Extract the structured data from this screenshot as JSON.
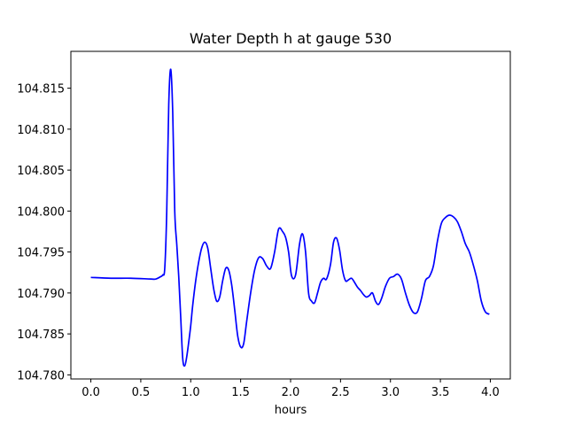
{
  "chart_data": {
    "type": "line",
    "title": "Water Depth h at gauge 530",
    "xlabel": "hours",
    "ylabel": "",
    "xlim": [
      -0.2,
      4.2
    ],
    "ylim": [
      104.7795,
      104.8195
    ],
    "xticks": [
      0.0,
      0.5,
      1.0,
      1.5,
      2.0,
      2.5,
      3.0,
      3.5,
      4.0
    ],
    "xtick_labels": [
      "0.0",
      "0.5",
      "1.0",
      "1.5",
      "2.0",
      "2.5",
      "3.0",
      "3.5",
      "4.0"
    ],
    "yticks": [
      104.78,
      104.785,
      104.79,
      104.795,
      104.8,
      104.805,
      104.81,
      104.815
    ],
    "ytick_labels": [
      "104.780",
      "104.785",
      "104.790",
      "104.795",
      "104.800",
      "104.805",
      "104.810",
      "104.815"
    ],
    "grid": false,
    "series": [
      {
        "color": "#0000ff",
        "x": [
          0.0,
          0.2,
          0.4,
          0.6,
          0.65,
          0.7,
          0.72,
          0.74,
          0.76,
          0.78,
          0.8,
          0.82,
          0.84,
          0.86,
          0.88,
          0.9,
          0.92,
          0.94,
          0.96,
          0.98,
          1.0,
          1.02,
          1.05,
          1.08,
          1.11,
          1.14,
          1.17,
          1.2,
          1.23,
          1.26,
          1.29,
          1.32,
          1.35,
          1.38,
          1.41,
          1.44,
          1.47,
          1.5,
          1.53,
          1.56,
          1.6,
          1.64,
          1.68,
          1.72,
          1.76,
          1.8,
          1.84,
          1.88,
          1.92,
          1.95,
          1.98,
          2.01,
          2.05,
          2.09,
          2.12,
          2.15,
          2.18,
          2.21,
          2.24,
          2.27,
          2.3,
          2.33,
          2.36,
          2.4,
          2.43,
          2.46,
          2.49,
          2.52,
          2.55,
          2.58,
          2.61,
          2.64,
          2.67,
          2.7,
          2.73,
          2.76,
          2.79,
          2.82,
          2.85,
          2.88,
          2.91,
          2.95,
          2.99,
          3.03,
          3.07,
          3.11,
          3.15,
          3.19,
          3.23,
          3.27,
          3.31,
          3.35,
          3.39,
          3.43,
          3.47,
          3.51,
          3.55,
          3.59,
          3.63,
          3.67,
          3.71,
          3.75,
          3.79,
          3.83,
          3.87,
          3.91,
          3.95,
          3.99
        ],
        "y": [
          104.7919,
          104.7918,
          104.7918,
          104.7917,
          104.7917,
          104.792,
          104.7922,
          104.793,
          104.8,
          104.813,
          104.8173,
          104.812,
          104.8,
          104.796,
          104.792,
          104.787,
          104.782,
          104.7811,
          104.7822,
          104.784,
          104.786,
          104.7885,
          104.7915,
          104.7938,
          104.7955,
          104.7962,
          104.7955,
          104.793,
          104.7905,
          104.789,
          104.7895,
          104.7915,
          104.793,
          104.7928,
          104.791,
          104.788,
          104.7848,
          104.7834,
          104.7838,
          104.7865,
          104.79,
          104.7928,
          104.7943,
          104.7942,
          104.7933,
          104.793,
          104.795,
          104.7978,
          104.7975,
          104.7968,
          104.795,
          104.7921,
          104.7922,
          104.796,
          104.7972,
          104.795,
          104.79,
          104.789,
          104.7888,
          104.79,
          104.7913,
          104.7918,
          104.7917,
          104.7935,
          104.7962,
          104.7967,
          104.7953,
          104.7928,
          104.7915,
          104.7916,
          104.7918,
          104.7913,
          104.7907,
          104.7903,
          104.7898,
          104.7895,
          104.7897,
          104.79,
          104.789,
          104.7886,
          104.7893,
          104.7908,
          104.7918,
          104.792,
          104.7923,
          104.7917,
          104.79,
          104.7885,
          104.7876,
          104.7877,
          104.7893,
          104.7915,
          104.792,
          104.7933,
          104.7963,
          104.7985,
          104.7992,
          104.7995,
          104.7993,
          104.7987,
          104.7975,
          104.796,
          104.795,
          104.7934,
          104.7915,
          104.789,
          104.7877,
          104.7874
        ]
      }
    ]
  }
}
